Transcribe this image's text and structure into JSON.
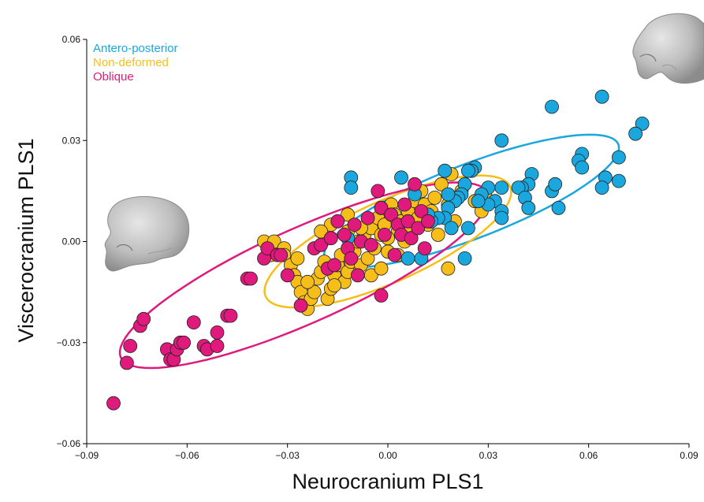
{
  "chart_data": {
    "type": "scatter",
    "title": "",
    "xlabel": "Neurocranium PLS1",
    "ylabel": "Viscerocranium PLS1",
    "xlim": [
      -0.09,
      0.09
    ],
    "ylim": [
      -0.06,
      0.06
    ],
    "x_ticks": [
      "−0.09",
      "−0.06",
      "−0.03",
      "0.00",
      "0.03",
      "0.06",
      "0.09"
    ],
    "y_ticks": [
      "−0.06",
      "−0.03",
      "0.00",
      "0.03",
      "0.06"
    ],
    "grid": false,
    "legend_position": "top-left",
    "series": [
      {
        "name": "Antero-posterior",
        "color": "#1aa7dd",
        "ellipse": {
          "cx": 0.025,
          "cy": 0.012,
          "rx": 0.047,
          "ry": 0.011,
          "angle_deg": 21
        },
        "points": [
          [
            0.049,
            0.04
          ],
          [
            0.064,
            0.043
          ],
          [
            0.076,
            0.035
          ],
          [
            0.074,
            0.032
          ],
          [
            0.069,
            0.025
          ],
          [
            0.058,
            0.026
          ],
          [
            0.057,
            0.024
          ],
          [
            0.058,
            0.022
          ],
          [
            0.065,
            0.019
          ],
          [
            0.069,
            0.018
          ],
          [
            0.064,
            0.016
          ],
          [
            0.049,
            0.015
          ],
          [
            0.05,
            0.017
          ],
          [
            0.051,
            0.01
          ],
          [
            0.043,
            0.02
          ],
          [
            0.042,
            0.017
          ],
          [
            0.04,
            0.016
          ],
          [
            0.039,
            0.016
          ],
          [
            0.041,
            0.013
          ],
          [
            0.042,
            0.01
          ],
          [
            0.034,
            0.03
          ],
          [
            0.034,
            0.016
          ],
          [
            0.032,
            0.012
          ],
          [
            0.03,
            0.016
          ],
          [
            0.03,
            0.011
          ],
          [
            0.034,
            0.009
          ],
          [
            0.034,
            0.007
          ],
          [
            0.028,
            0.014
          ],
          [
            0.027,
            0.012
          ],
          [
            0.026,
            0.022
          ],
          [
            0.025,
            0.021
          ],
          [
            0.024,
            0.021
          ],
          [
            0.023,
            0.017
          ],
          [
            0.022,
            0.014
          ],
          [
            0.021,
            0.013
          ],
          [
            0.02,
            0.012
          ],
          [
            0.018,
            0.014
          ],
          [
            0.018,
            0.01
          ],
          [
            0.017,
            0.007
          ],
          [
            0.015,
            0.007
          ],
          [
            0.013,
            0.006
          ],
          [
            0.012,
            0.008
          ],
          [
            0.024,
            0.004
          ],
          [
            0.023,
            -0.005
          ],
          [
            0.019,
            0.004
          ],
          [
            0.017,
            0.021
          ],
          [
            0.008,
            0.014
          ],
          [
            0.004,
            0.019
          ],
          [
            0.006,
            -0.005
          ],
          [
            0.01,
            -0.005
          ],
          [
            -0.011,
            0.019
          ],
          [
            -0.011,
            0.016
          ],
          [
            -0.012,
            0.001
          ]
        ]
      },
      {
        "name": "Non-deformed",
        "color": "#f7be1a",
        "ellipse": {
          "cx": 0.0,
          "cy": 0.0,
          "rx": 0.04,
          "ry": 0.012,
          "angle_deg": 24
        },
        "points": [
          [
            -0.037,
            0.0
          ],
          [
            -0.035,
            -0.004
          ],
          [
            -0.034,
            0.0
          ],
          [
            -0.031,
            -0.002
          ],
          [
            -0.031,
            -0.004
          ],
          [
            -0.029,
            -0.007
          ],
          [
            -0.028,
            -0.01
          ],
          [
            -0.027,
            -0.012
          ],
          [
            -0.026,
            -0.015
          ],
          [
            -0.025,
            -0.018
          ],
          [
            -0.024,
            -0.02
          ],
          [
            -0.023,
            -0.017
          ],
          [
            -0.022,
            -0.015
          ],
          [
            -0.021,
            -0.011
          ],
          [
            -0.02,
            -0.009
          ],
          [
            -0.019,
            -0.006
          ],
          [
            -0.018,
            -0.017
          ],
          [
            -0.017,
            -0.014
          ],
          [
            -0.016,
            -0.01
          ],
          [
            -0.015,
            -0.007
          ],
          [
            -0.014,
            -0.004
          ],
          [
            -0.013,
            -0.012
          ],
          [
            -0.012,
            -0.009
          ],
          [
            -0.011,
            -0.006
          ],
          [
            -0.01,
            -0.003
          ],
          [
            -0.009,
            0.0
          ],
          [
            -0.008,
            -0.007
          ],
          [
            -0.007,
            0.002
          ],
          [
            -0.006,
            -0.005
          ],
          [
            -0.005,
            0.004
          ],
          [
            -0.004,
            -0.002
          ],
          [
            -0.003,
            0.007
          ],
          [
            -0.002,
            0.002
          ],
          [
            -0.001,
            0.005
          ],
          [
            0.0,
            -0.003
          ],
          [
            0.001,
            0.011
          ],
          [
            0.002,
            0.008
          ],
          [
            0.003,
            0.003
          ],
          [
            0.004,
            0.006
          ],
          [
            0.005,
            0.0
          ],
          [
            0.006,
            0.009
          ],
          [
            0.007,
            0.004
          ],
          [
            0.008,
            0.012
          ],
          [
            0.009,
            0.007
          ],
          [
            0.01,
            0.015
          ],
          [
            0.011,
            0.011
          ],
          [
            0.012,
            0.005
          ],
          [
            0.013,
            0.009
          ],
          [
            0.014,
            0.013
          ],
          [
            0.015,
            0.002
          ],
          [
            0.016,
            0.017
          ],
          [
            0.018,
            0.011
          ],
          [
            0.019,
            0.02
          ],
          [
            0.02,
            0.006
          ],
          [
            0.022,
            0.015
          ],
          [
            0.026,
            0.012
          ],
          [
            0.028,
            0.009
          ],
          [
            0.029,
            0.014
          ],
          [
            0.018,
            -0.008
          ],
          [
            -0.012,
            0.003
          ],
          [
            -0.017,
            0.005
          ],
          [
            -0.02,
            0.003
          ],
          [
            -0.027,
            -0.005
          ],
          [
            -0.024,
            -0.012
          ],
          [
            -0.016,
            -0.013
          ],
          [
            -0.005,
            -0.01
          ],
          [
            -0.002,
            -0.008
          ],
          [
            0.0,
            0.001
          ],
          [
            0.003,
            -0.004
          ],
          [
            -0.008,
            0.004
          ],
          [
            -0.012,
            0.008
          ],
          [
            -0.002,
            0.01
          ]
        ]
      },
      {
        "name": "Oblique",
        "color": "#e0197d",
        "ellipse": {
          "cx": -0.025,
          "cy": -0.01,
          "rx": 0.06,
          "ry": 0.014,
          "angle_deg": 24
        },
        "points": [
          [
            -0.082,
            -0.048
          ],
          [
            -0.078,
            -0.036
          ],
          [
            -0.077,
            -0.031
          ],
          [
            -0.074,
            -0.025
          ],
          [
            -0.073,
            -0.023
          ],
          [
            -0.066,
            -0.032
          ],
          [
            -0.065,
            -0.035
          ],
          [
            -0.064,
            -0.035
          ],
          [
            -0.063,
            -0.032
          ],
          [
            -0.062,
            -0.03
          ],
          [
            -0.061,
            -0.03
          ],
          [
            -0.058,
            -0.024
          ],
          [
            -0.055,
            -0.031
          ],
          [
            -0.054,
            -0.032
          ],
          [
            -0.051,
            -0.027
          ],
          [
            -0.051,
            -0.031
          ],
          [
            -0.048,
            -0.022
          ],
          [
            -0.047,
            -0.022
          ],
          [
            -0.042,
            -0.011
          ],
          [
            -0.041,
            -0.011
          ],
          [
            -0.037,
            -0.005
          ],
          [
            -0.036,
            -0.002
          ],
          [
            -0.033,
            -0.004
          ],
          [
            -0.032,
            -0.004
          ],
          [
            -0.03,
            -0.01
          ],
          [
            -0.026,
            -0.019
          ],
          [
            -0.022,
            -0.002
          ],
          [
            -0.02,
            -0.001
          ],
          [
            -0.018,
            -0.008
          ],
          [
            -0.017,
            0.001
          ],
          [
            -0.015,
            0.006
          ],
          [
            -0.013,
            0.002
          ],
          [
            -0.012,
            -0.002
          ],
          [
            -0.01,
            0.005
          ],
          [
            -0.008,
            0.0
          ],
          [
            -0.006,
            0.007
          ],
          [
            -0.005,
            -0.001
          ],
          [
            -0.003,
            0.015
          ],
          [
            -0.002,
            0.01
          ],
          [
            -0.001,
            0.002
          ],
          [
            0.001,
            0.008
          ],
          [
            0.002,
            -0.004
          ],
          [
            0.003,
            0.005
          ],
          [
            0.004,
            0.002
          ],
          [
            0.005,
            0.011
          ],
          [
            0.006,
            0.006
          ],
          [
            0.007,
            0.001
          ],
          [
            0.008,
            0.017
          ],
          [
            0.009,
            0.004
          ],
          [
            0.01,
            0.009
          ],
          [
            0.011,
            -0.002
          ],
          [
            0.012,
            0.006
          ],
          [
            -0.002,
            -0.016
          ],
          [
            -0.011,
            -0.005
          ],
          [
            -0.009,
            -0.01
          ],
          [
            -0.016,
            -0.007
          ]
        ]
      }
    ]
  }
}
